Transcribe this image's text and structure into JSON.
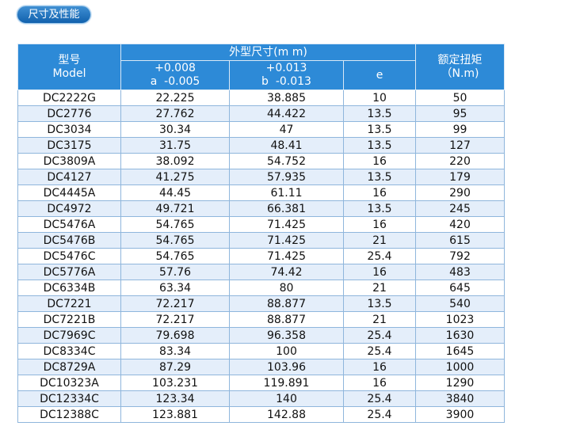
{
  "badge": "尺寸及性能",
  "table": {
    "header": {
      "model_cn": "型号",
      "model_en": "Model",
      "dims": "外型尺寸(m m)",
      "col_a": {
        "tol_upper": "+0.008",
        "tol_lower": "a  -0.005"
      },
      "col_b": {
        "tol_upper": "+0.013",
        "tol_lower": "b  -0.013"
      },
      "col_e": "e",
      "torque_cn": "额定扭矩",
      "torque_unit": "（N.m)"
    },
    "rows": [
      [
        "DC2222G",
        "22.225",
        "38.885",
        "10",
        "50"
      ],
      [
        "DC2776",
        "27.762",
        "44.422",
        "13.5",
        "95"
      ],
      [
        "DC3034",
        "30.34",
        "47",
        "13.5",
        "99"
      ],
      [
        "DC3175",
        "31.75",
        "48.41",
        "13.5",
        "127"
      ],
      [
        "DC3809A",
        "38.092",
        "54.752",
        "16",
        "220"
      ],
      [
        "DC4127",
        "41.275",
        "57.935",
        "13.5",
        "179"
      ],
      [
        "DC4445A",
        "44.45",
        "61.11",
        "16",
        "290"
      ],
      [
        "DC4972",
        "49.721",
        "66.381",
        "13.5",
        "245"
      ],
      [
        "DC5476A",
        "54.765",
        "71.425",
        "16",
        "420"
      ],
      [
        "DC5476B",
        "54.765",
        "71.425",
        "21",
        "615"
      ],
      [
        "DC5476C",
        "54.765",
        "71.425",
        "25.4",
        "792"
      ],
      [
        "DC5776A",
        "57.76",
        "74.42",
        "16",
        "483"
      ],
      [
        "DC6334B",
        "63.34",
        "80",
        "21",
        "645"
      ],
      [
        "DC7221",
        "72.217",
        "88.877",
        "13.5",
        "540"
      ],
      [
        "DC7221B",
        "72.217",
        "88.877",
        "21",
        "1023"
      ],
      [
        "DC7969C",
        "79.698",
        "96.358",
        "25.4",
        "1630"
      ],
      [
        "DC8334C",
        "83.34",
        "100",
        "25.4",
        "1645"
      ],
      [
        "DC8729A",
        "87.29",
        "103.96",
        "16",
        "1000"
      ],
      [
        "DC10323A",
        "103.231",
        "119.891",
        "16",
        "1290"
      ],
      [
        "DC12334C",
        "123.34",
        "140",
        "25.4",
        "3840"
      ],
      [
        "DC12388C",
        "123.881",
        "142.88",
        "25.4",
        "3900"
      ]
    ]
  }
}
